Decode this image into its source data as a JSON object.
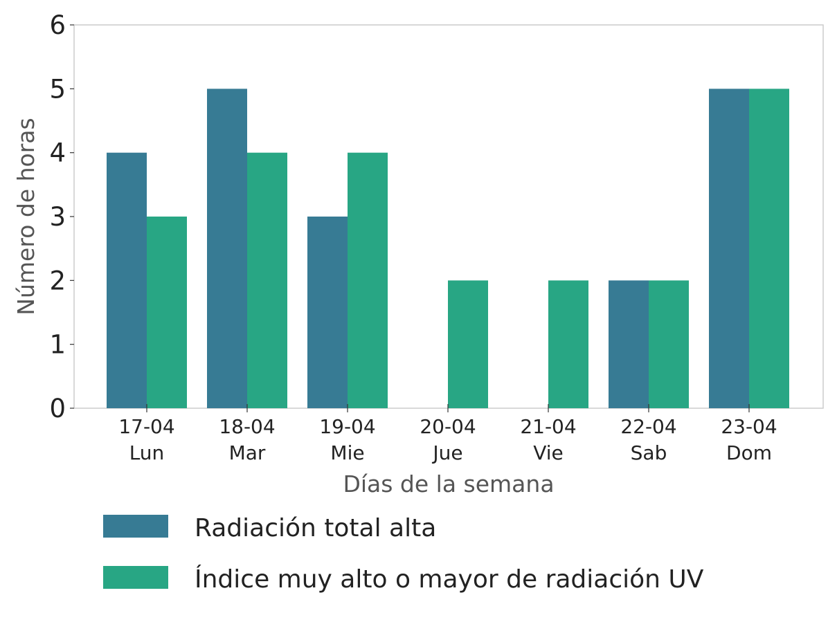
{
  "chart_data": {
    "type": "bar",
    "title": "",
    "xlabel": "Días de la semana",
    "ylabel": "Número de horas",
    "ylim": [
      0,
      6
    ],
    "yticks": [
      0,
      1,
      2,
      3,
      4,
      5,
      6
    ],
    "categories": [
      {
        "date": "17-04",
        "day": "Lun"
      },
      {
        "date": "18-04",
        "day": "Mar"
      },
      {
        "date": "19-04",
        "day": "Mie"
      },
      {
        "date": "20-04",
        "day": "Jue"
      },
      {
        "date": "21-04",
        "day": "Vie"
      },
      {
        "date": "22-04",
        "day": "Sab"
      },
      {
        "date": "23-04",
        "day": "Dom"
      }
    ],
    "series": [
      {
        "name": "Radiación total alta",
        "color": "#377b94",
        "values": [
          4,
          5,
          3,
          0,
          0,
          2,
          5
        ]
      },
      {
        "name": "Índice muy alto o mayor de radiación UV",
        "color": "#28a684",
        "values": [
          3,
          4,
          4,
          2,
          2,
          2,
          5
        ]
      }
    ],
    "grid": false,
    "legend_position": "bottom"
  }
}
